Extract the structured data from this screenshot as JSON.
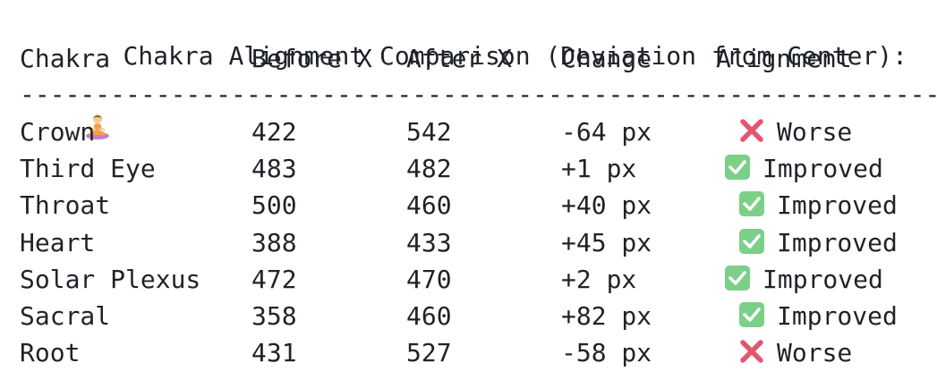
{
  "title": "Chakra Alignment Comparison (Deviation from Center):",
  "title_icon": "meditation-icon",
  "headers": {
    "chakra": "Chakra",
    "before": "Before X",
    "after": "After X",
    "change": "Change",
    "alignment": "Alignment"
  },
  "separator": "----------------------------------------------------------------------",
  "rows": [
    {
      "chakra": "Crown",
      "before": "422",
      "after": "542",
      "change": "-64 px",
      "alignment": "Worse",
      "icon": "cross-mark-icon"
    },
    {
      "chakra": "Third Eye",
      "before": "483",
      "after": "482",
      "change": "+1 px",
      "alignment": "Improved",
      "icon": "check-mark-icon"
    },
    {
      "chakra": "Throat",
      "before": "500",
      "after": "460",
      "change": "+40 px",
      "alignment": "Improved",
      "icon": "check-mark-icon"
    },
    {
      "chakra": "Heart",
      "before": "388",
      "after": "433",
      "change": "+45 px",
      "alignment": "Improved",
      "icon": "check-mark-icon"
    },
    {
      "chakra": "Solar Plexus",
      "before": "472",
      "after": "470",
      "change": "+2 px",
      "alignment": "Improved",
      "icon": "check-mark-icon"
    },
    {
      "chakra": "Sacral",
      "before": "358",
      "after": "460",
      "change": "+82 px",
      "alignment": "Improved",
      "icon": "check-mark-icon"
    },
    {
      "chakra": "Root",
      "before": "431",
      "after": "527",
      "change": "-58 px",
      "alignment": "Worse",
      "icon": "cross-mark-icon"
    }
  ],
  "colors": {
    "text": "#1f2328",
    "check_green": "#7ccf87",
    "cross_red": "#e2566f"
  }
}
